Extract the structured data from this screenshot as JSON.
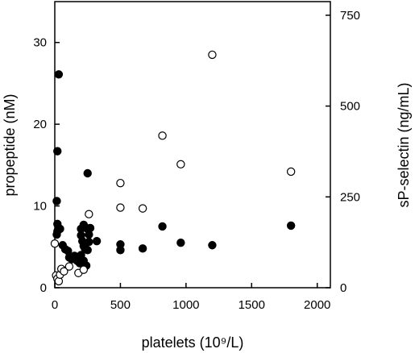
{
  "chart_data": {
    "type": "scatter",
    "title": "",
    "xlabel": "platelets (10⁹/L)",
    "ylabel": "propeptide (nM)",
    "y2label": "sP-selectin (ng/mL)",
    "xlim": [
      0,
      2100
    ],
    "ylim": [
      0,
      35
    ],
    "y2lim": [
      0,
      787.5
    ],
    "xticks": [
      0,
      500,
      1000,
      1500,
      2000
    ],
    "yticks": [
      0,
      10,
      20,
      30
    ],
    "y2ticks": [
      0,
      250,
      500,
      750
    ],
    "grid": false,
    "series": [
      {
        "axis": "left",
        "marker": "filled-circle",
        "color": "#000000",
        "points": [
          [
            30,
            26.1
          ],
          [
            20,
            16.7
          ],
          [
            15,
            10.6
          ],
          [
            20,
            7.8
          ],
          [
            20,
            6.9
          ],
          [
            15,
            6.5
          ],
          [
            40,
            7.2
          ],
          [
            60,
            5.2
          ],
          [
            80,
            4.7
          ],
          [
            100,
            4.5
          ],
          [
            110,
            3.7
          ],
          [
            130,
            3.5
          ],
          [
            150,
            3.9
          ],
          [
            170,
            3.3
          ],
          [
            190,
            3.0
          ],
          [
            200,
            7.2
          ],
          [
            220,
            7.7
          ],
          [
            240,
            7.3
          ],
          [
            200,
            6.4
          ],
          [
            210,
            5.7
          ],
          [
            220,
            5.1
          ],
          [
            230,
            4.8
          ],
          [
            250,
            4.6
          ],
          [
            200,
            4.0
          ],
          [
            220,
            3.3
          ],
          [
            240,
            2.7
          ],
          [
            260,
            5.6
          ],
          [
            260,
            6.5
          ],
          [
            270,
            7.3
          ],
          [
            250,
            14.0
          ],
          [
            320,
            5.7
          ],
          [
            500,
            5.3
          ],
          [
            500,
            4.6
          ],
          [
            670,
            4.8
          ],
          [
            820,
            7.5
          ],
          [
            960,
            5.5
          ],
          [
            1200,
            5.2
          ],
          [
            1800,
            7.6
          ]
        ]
      },
      {
        "axis": "left",
        "marker": "open-circle",
        "color": "#000000",
        "points": [
          [
            0,
            5.4
          ],
          [
            10,
            1.5
          ],
          [
            20,
            1.1
          ],
          [
            30,
            0.8
          ],
          [
            40,
            1.6
          ],
          [
            50,
            2.3
          ],
          [
            70,
            2.0
          ],
          [
            110,
            2.6
          ],
          [
            180,
            1.8
          ],
          [
            220,
            2.2
          ],
          [
            260,
            9.0
          ],
          [
            500,
            12.8
          ],
          [
            500,
            9.8
          ],
          [
            670,
            9.7
          ],
          [
            820,
            18.6
          ],
          [
            960,
            15.1
          ],
          [
            1200,
            28.5
          ],
          [
            1800,
            14.2
          ]
        ]
      }
    ]
  }
}
